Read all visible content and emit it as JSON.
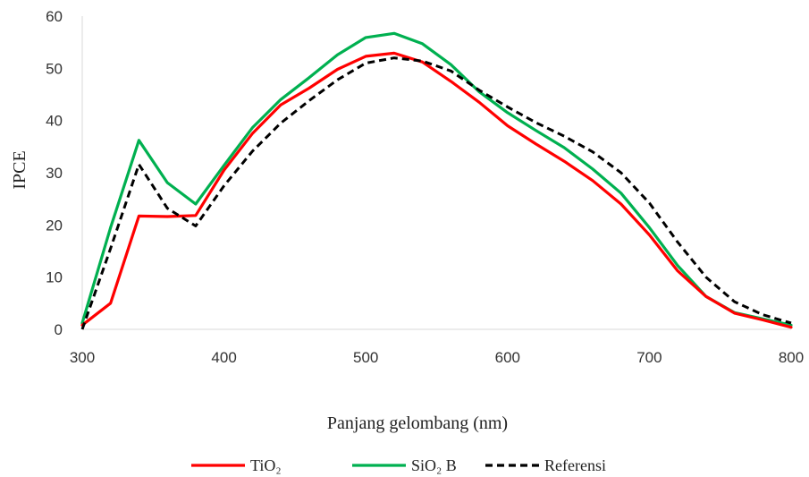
{
  "chart_data": {
    "type": "line",
    "title": "",
    "xlabel": "Panjang gelombang (nm)",
    "ylabel": "IPCE",
    "xlim": [
      300,
      800
    ],
    "ylim": [
      0,
      60
    ],
    "xticks": [
      300,
      400,
      500,
      600,
      700,
      800
    ],
    "yticks": [
      0,
      10,
      20,
      30,
      40,
      50,
      60
    ],
    "grid": false,
    "legend_position": "bottom",
    "series": [
      {
        "name": "TiO₂",
        "color": "#ff0000",
        "style": "solid",
        "x": [
          300,
          320,
          340,
          360,
          380,
          400,
          420,
          440,
          460,
          480,
          500,
          520,
          540,
          560,
          580,
          600,
          620,
          640,
          660,
          680,
          700,
          720,
          740,
          760,
          780,
          800
        ],
        "y": [
          0.8,
          5,
          21.7,
          21.6,
          21.8,
          30.5,
          37.5,
          43,
          46.2,
          49.8,
          52.3,
          52.9,
          51.2,
          47.5,
          43.5,
          39,
          35.5,
          32.2,
          28.5,
          24,
          18.1,
          11.2,
          6.3,
          3.1,
          1.8,
          0.4
        ]
      },
      {
        "name": "SiO₂ B",
        "color": "#00b050",
        "style": "solid",
        "x": [
          300,
          320,
          340,
          360,
          380,
          400,
          420,
          440,
          460,
          480,
          500,
          520,
          540,
          560,
          580,
          600,
          620,
          640,
          660,
          680,
          700,
          720,
          740,
          760,
          780,
          800
        ],
        "y": [
          1.2,
          19.5,
          36.2,
          28.1,
          24,
          31.4,
          38.6,
          44,
          48.2,
          52.6,
          55.9,
          56.7,
          54.7,
          50.7,
          45.5,
          41.5,
          38.1,
          34.8,
          30.7,
          26.1,
          19.5,
          12.2,
          6.3,
          3.2,
          2,
          0.8
        ]
      },
      {
        "name": "Referensi",
        "color": "#000000",
        "style": "dashed",
        "x": [
          300,
          320,
          340,
          360,
          380,
          400,
          420,
          440,
          460,
          480,
          500,
          520,
          540,
          560,
          580,
          600,
          620,
          640,
          660,
          680,
          700,
          720,
          740,
          760,
          780,
          800
        ],
        "y": [
          0,
          15.5,
          31.6,
          23.2,
          19.8,
          27.5,
          34.1,
          39.5,
          43.8,
          47.8,
          51,
          52,
          51.4,
          49.5,
          45.8,
          42.6,
          39.6,
          37,
          34,
          30,
          24.2,
          16.7,
          10,
          5.3,
          2.8,
          1.2
        ]
      }
    ]
  }
}
